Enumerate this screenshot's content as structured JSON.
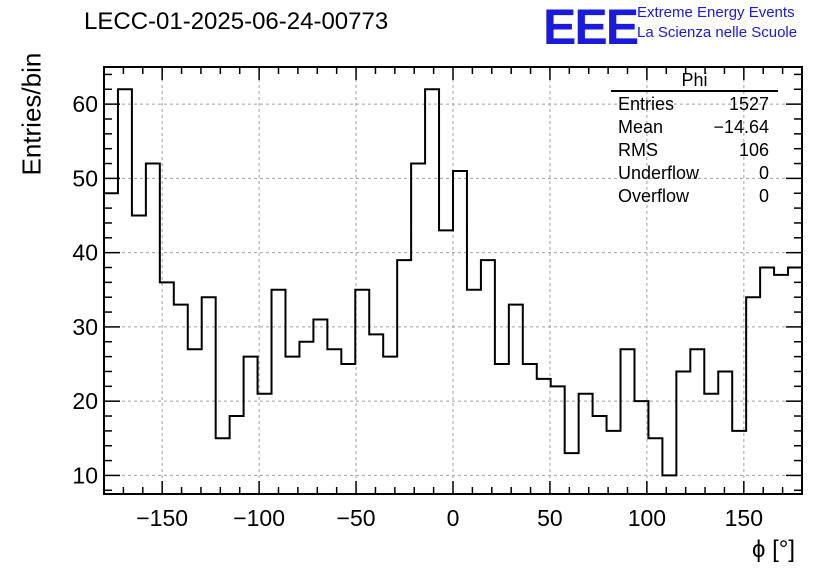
{
  "title": "LECC-01-2025-06-24-00773",
  "logo": {
    "mark": "EEE",
    "line1": "Extreme Energy Events",
    "line2": "La Scienza nelle Scuole"
  },
  "colors": {
    "logo": "#1a1adc",
    "line": "#000000",
    "grid": "#a0a0a0"
  },
  "stats_box": {
    "title": "Phi",
    "rows": [
      {
        "label": "Entries",
        "value": "1527"
      },
      {
        "label": "Mean",
        "value": "−14.64"
      },
      {
        "label": "RMS",
        "value": "106"
      },
      {
        "label": "Underflow",
        "value": "0"
      },
      {
        "label": "Overflow",
        "value": "0"
      }
    ]
  },
  "chart_data": {
    "type": "histogram",
    "xlabel": "ϕ [°]",
    "ylabel": "Entries/bin",
    "xlim": [
      -180,
      180
    ],
    "ylim": [
      7.5,
      65
    ],
    "grid": true,
    "bin_width": 7.2,
    "bin_edges_start": -180,
    "values": [
      48,
      62,
      45,
      52,
      36,
      33,
      27,
      34,
      15,
      18,
      26,
      21,
      35,
      26,
      28,
      31,
      27,
      25,
      35,
      29,
      26,
      39,
      52,
      62,
      43,
      51,
      35,
      39,
      25,
      33,
      25,
      23,
      22,
      13,
      21,
      18,
      16,
      27,
      20,
      15,
      10,
      24,
      27,
      21,
      24,
      16,
      34,
      38,
      37,
      38
    ],
    "xticks": [
      -150,
      -100,
      -50,
      0,
      50,
      100,
      150
    ],
    "xtick_labels": [
      "−150",
      "−100",
      "−50",
      "0",
      "50",
      "100",
      "150"
    ],
    "yticks": [
      10,
      20,
      30,
      40,
      50,
      60
    ],
    "ytick_labels": [
      "10",
      "20",
      "30",
      "40",
      "50",
      "60"
    ]
  }
}
